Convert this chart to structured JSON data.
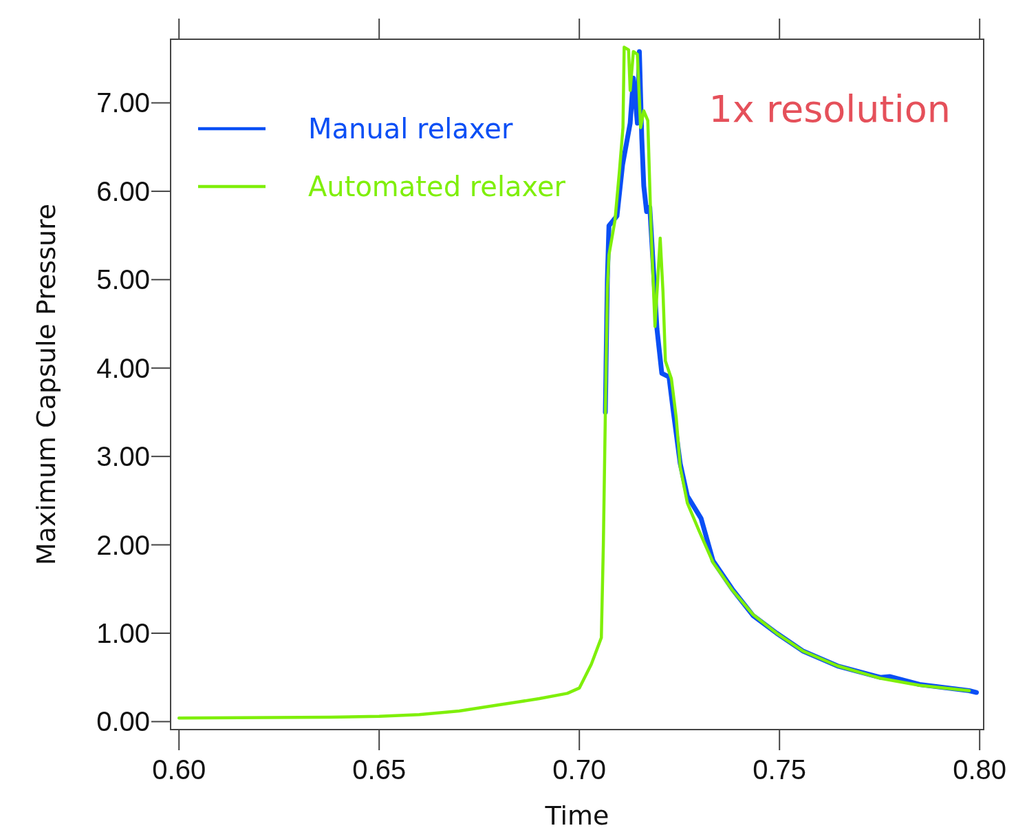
{
  "chart_data": {
    "type": "line",
    "xlabel": "Time",
    "ylabel": "Maximum Capsule Pressure",
    "annotations": [
      "1x resolution"
    ],
    "xlim": [
      0.5979,
      0.801
    ],
    "ylim": [
      -0.09,
      7.72
    ],
    "xticks": [
      {
        "value": 0.6,
        "label": "0.60"
      },
      {
        "value": 0.65,
        "label": "0.65"
      },
      {
        "value": 0.7,
        "label": "0.70"
      },
      {
        "value": 0.75,
        "label": "0.75"
      },
      {
        "value": 0.8,
        "label": "0.80"
      }
    ],
    "yticks": [
      {
        "value": 0,
        "label": "0.00"
      },
      {
        "value": 1,
        "label": "1.00"
      },
      {
        "value": 2,
        "label": "2.00"
      },
      {
        "value": 3,
        "label": "3.00"
      },
      {
        "value": 4,
        "label": "4.00"
      },
      {
        "value": 5,
        "label": "5.00"
      },
      {
        "value": 6,
        "label": "6.00"
      },
      {
        "value": 7,
        "label": "7.00"
      }
    ],
    "grid": false,
    "legend": "top left",
    "marker": "none",
    "line_style": "solid",
    "series": [
      {
        "name": "Manual relaxer",
        "color": "#0a4ff5",
        "x": [
          0.7065,
          0.707,
          0.7074,
          0.7094,
          0.7108,
          0.7127,
          0.7135,
          0.7145,
          0.715,
          0.7156,
          0.7161,
          0.7168,
          0.7176,
          0.7183,
          0.7194,
          0.7206,
          0.7224,
          0.7235,
          0.7252,
          0.727,
          0.7304,
          0.7334,
          0.7382,
          0.7434,
          0.7493,
          0.7558,
          0.7645,
          0.7752,
          0.7775,
          0.785,
          0.7974,
          0.7992
        ],
        "values": [
          3.5,
          5.0,
          5.61,
          5.72,
          6.3,
          6.77,
          7.28,
          6.77,
          7.58,
          6.6,
          6.06,
          5.77,
          5.82,
          5.28,
          4.44,
          3.94,
          3.9,
          3.5,
          2.92,
          2.55,
          2.3,
          1.82,
          1.5,
          1.2,
          1.0,
          0.8,
          0.63,
          0.5,
          0.51,
          0.42,
          0.35,
          0.33
        ]
      },
      {
        "name": "Automated relaxer",
        "color": "#7fef0a",
        "x": [
          0.6,
          0.6377,
          0.65,
          0.66,
          0.67,
          0.68,
          0.69,
          0.697,
          0.7,
          0.703,
          0.705,
          0.7055,
          0.706,
          0.7065,
          0.707,
          0.7074,
          0.7089,
          0.71,
          0.7109,
          0.7112,
          0.7123,
          0.7127,
          0.7135,
          0.7145,
          0.7153,
          0.7161,
          0.7171,
          0.7179,
          0.7189,
          0.7202,
          0.7209,
          0.7215,
          0.723,
          0.7242,
          0.7252,
          0.727,
          0.7299,
          0.7334,
          0.7382,
          0.7434,
          0.7493,
          0.7558,
          0.7645,
          0.7752,
          0.785,
          0.7974
        ],
        "values": [
          0.04,
          0.05,
          0.06,
          0.08,
          0.12,
          0.19,
          0.26,
          0.32,
          0.38,
          0.65,
          0.89,
          0.95,
          2.0,
          3.49,
          4.9,
          5.28,
          5.67,
          6.22,
          6.72,
          7.63,
          7.6,
          7.14,
          7.58,
          7.55,
          6.72,
          6.91,
          6.8,
          5.6,
          4.47,
          5.47,
          4.86,
          4.08,
          3.88,
          3.44,
          2.88,
          2.47,
          2.16,
          1.8,
          1.49,
          1.21,
          1.0,
          0.8,
          0.63,
          0.49,
          0.41,
          0.35
        ]
      }
    ]
  }
}
